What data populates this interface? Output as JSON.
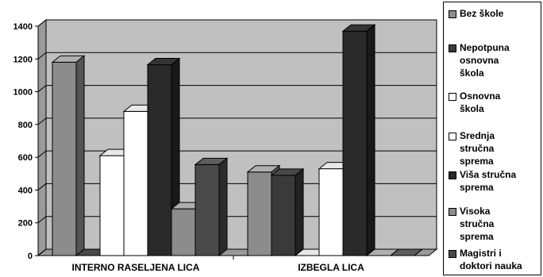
{
  "chart_data": {
    "type": "bar",
    "categories": [
      "INTERNO RASELJENA LICA",
      "IZBEGLA LICA"
    ],
    "ylim": [
      0,
      1400
    ],
    "yticks": [
      0,
      200,
      400,
      600,
      800,
      1000,
      1200,
      1400
    ],
    "grid": true,
    "legend_position": "right",
    "series": [
      {
        "name": "Bez škole",
        "values": [
          1180,
          510
        ],
        "color": "#8c8c8c"
      },
      {
        "name": "Nepotpuna osnovna škola",
        "values": [
          0,
          490
        ],
        "color": "#3a3a3a"
      },
      {
        "name": "Osnovna škola",
        "values": [
          610,
          0
        ],
        "color": "#ffffff"
      },
      {
        "name": "Srednja stručna sprema",
        "values": [
          880,
          530
        ],
        "color": "#ffffff"
      },
      {
        "name": "Viša stručna sprema",
        "values": [
          1165,
          1370
        ],
        "color": "#2a2a2a"
      },
      {
        "name": "Visoka stručna sprema",
        "values": [
          285,
          0
        ],
        "color": "#8c8c8c"
      },
      {
        "name": "Magistri i doktori nauka",
        "values": [
          555,
          0
        ],
        "color": "#4a4a4a"
      }
    ]
  },
  "legend": {
    "items": [
      {
        "lines": [
          "Bez škole"
        ],
        "color": "#8c8c8c"
      },
      {
        "lines": [
          "Nepotpuna",
          "osnovna",
          "škola"
        ],
        "color": "#3a3a3a"
      },
      {
        "lines": [
          "Osnovna",
          "škola"
        ],
        "color": "#ffffff"
      },
      {
        "lines": [
          "Srednja",
          "stručna",
          "sprema"
        ],
        "color": "#ffffff"
      },
      {
        "lines": [
          "Viša stručna",
          "sprema"
        ],
        "color": "#2a2a2a"
      },
      {
        "lines": [
          "Visoka",
          "stručna",
          "sprema"
        ],
        "color": "#8c8c8c"
      },
      {
        "lines": [
          "Magistri i",
          "doktori nauka"
        ],
        "color": "#4a4a4a"
      }
    ]
  }
}
